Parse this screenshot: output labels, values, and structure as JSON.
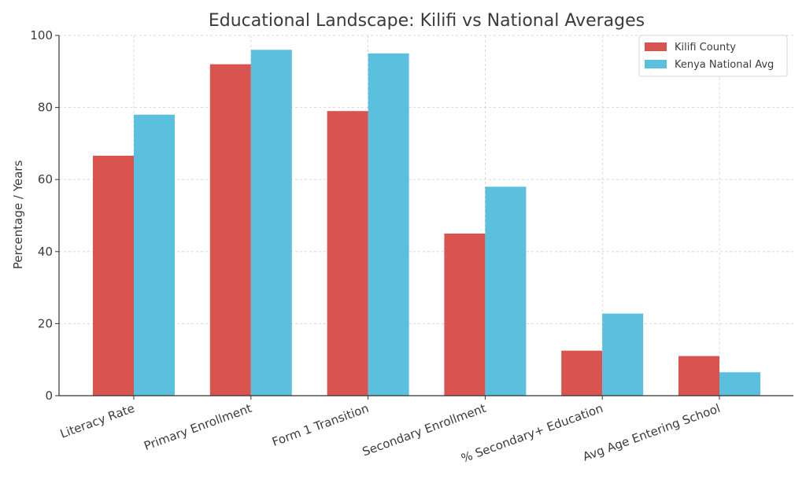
{
  "chart_data": {
    "type": "bar",
    "title": "Educational Landscape: Kilifi vs National Averages",
    "xlabel": "",
    "ylabel": "Percentage / Years",
    "ylim": [
      0,
      100
    ],
    "yticks": [
      0,
      20,
      40,
      60,
      80,
      100
    ],
    "grid": true,
    "legend_position": "top-right",
    "categories": [
      "Literacy Rate",
      "Primary Enrollment",
      "Form 1 Transition",
      "Secondary Enrollment",
      "% Secondary+ Education",
      "Avg Age Entering School"
    ],
    "series": [
      {
        "name": "Kilifi County",
        "color": "#d9534f",
        "values": [
          66.6,
          92,
          79,
          45,
          12.5,
          11
        ]
      },
      {
        "name": "Kenya National Avg",
        "color": "#5bc0de",
        "values": [
          78,
          96,
          95,
          58,
          22.8,
          6.5
        ]
      }
    ]
  }
}
